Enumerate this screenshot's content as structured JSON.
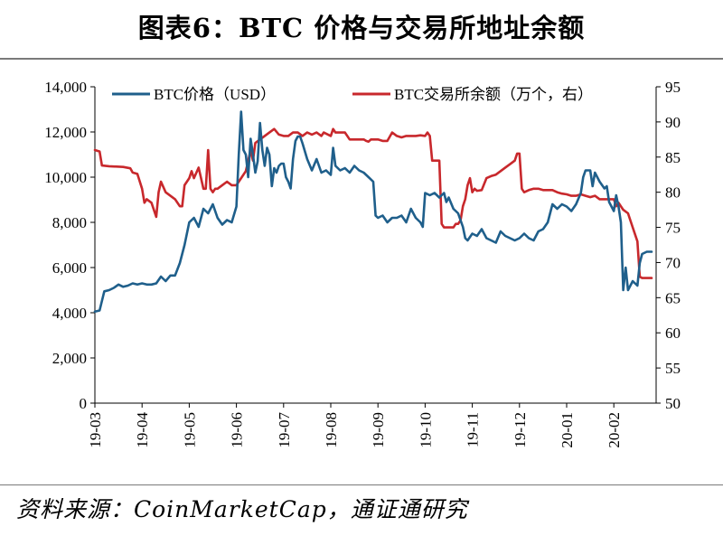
{
  "title": "图表6：BTC 价格与交易所地址余额",
  "source": "资料来源：CoinMarketCap，通证通研究",
  "chart_data": {
    "type": "line",
    "x_tick_labels": [
      "19-03",
      "19-04",
      "19-05",
      "19-06",
      "19-07",
      "19-08",
      "19-09",
      "19-10",
      "19-11",
      "19-12",
      "20-01",
      "20-02"
    ],
    "x_range": [
      0,
      11.8
    ],
    "y_left": {
      "range": [
        0,
        14000
      ],
      "ticks": [
        0,
        2000,
        4000,
        6000,
        8000,
        10000,
        12000,
        14000
      ],
      "tick_labels": [
        "0",
        "2,000",
        "4,000",
        "6,000",
        "8,000",
        "10,000",
        "12,000",
        "14,000"
      ]
    },
    "y_right": {
      "range": [
        50,
        95
      ],
      "ticks": [
        50,
        55,
        60,
        65,
        70,
        75,
        80,
        85,
        90,
        95
      ],
      "tick_labels": [
        "50",
        "55",
        "60",
        "65",
        "70",
        "75",
        "80",
        "85",
        "90",
        "95"
      ]
    },
    "grid": false,
    "legend_position": "top",
    "series": [
      {
        "name": "BTC价格（USD）",
        "axis": "left",
        "color": "#1f5f8b",
        "points": [
          [
            0.0,
            4050
          ],
          [
            0.1,
            4100
          ],
          [
            0.2,
            4950
          ],
          [
            0.3,
            5000
          ],
          [
            0.4,
            5100
          ],
          [
            0.5,
            5250
          ],
          [
            0.6,
            5150
          ],
          [
            0.7,
            5200
          ],
          [
            0.8,
            5300
          ],
          [
            0.9,
            5250
          ],
          [
            1.0,
            5300
          ],
          [
            1.1,
            5250
          ],
          [
            1.2,
            5250
          ],
          [
            1.3,
            5300
          ],
          [
            1.4,
            5600
          ],
          [
            1.5,
            5400
          ],
          [
            1.6,
            5650
          ],
          [
            1.7,
            5650
          ],
          [
            1.8,
            6200
          ],
          [
            1.9,
            7000
          ],
          [
            2.0,
            8000
          ],
          [
            2.1,
            8200
          ],
          [
            2.2,
            7800
          ],
          [
            2.3,
            8600
          ],
          [
            2.4,
            8400
          ],
          [
            2.5,
            8800
          ],
          [
            2.6,
            8200
          ],
          [
            2.7,
            7900
          ],
          [
            2.8,
            8100
          ],
          [
            2.9,
            8000
          ],
          [
            3.0,
            8700
          ],
          [
            3.05,
            11000
          ],
          [
            3.1,
            12900
          ],
          [
            3.15,
            11200
          ],
          [
            3.2,
            11000
          ],
          [
            3.25,
            10000
          ],
          [
            3.3,
            11700
          ],
          [
            3.35,
            11000
          ],
          [
            3.4,
            10200
          ],
          [
            3.45,
            10700
          ],
          [
            3.5,
            12400
          ],
          [
            3.55,
            11200
          ],
          [
            3.6,
            10500
          ],
          [
            3.65,
            11300
          ],
          [
            3.7,
            11000
          ],
          [
            3.75,
            9600
          ],
          [
            3.8,
            10400
          ],
          [
            3.85,
            10200
          ],
          [
            3.9,
            10500
          ],
          [
            3.95,
            10600
          ],
          [
            4.0,
            10600
          ],
          [
            4.05,
            10000
          ],
          [
            4.1,
            9800
          ],
          [
            4.15,
            9500
          ],
          [
            4.2,
            10800
          ],
          [
            4.25,
            11600
          ],
          [
            4.3,
            11800
          ],
          [
            4.35,
            11800
          ],
          [
            4.4,
            11500
          ],
          [
            4.5,
            10800
          ],
          [
            4.6,
            10300
          ],
          [
            4.7,
            10800
          ],
          [
            4.8,
            10200
          ],
          [
            4.9,
            10300
          ],
          [
            5.0,
            10100
          ],
          [
            5.05,
            11300
          ],
          [
            5.1,
            10500
          ],
          [
            5.2,
            10300
          ],
          [
            5.3,
            10400
          ],
          [
            5.4,
            10200
          ],
          [
            5.5,
            10500
          ],
          [
            5.6,
            10300
          ],
          [
            5.7,
            10200
          ],
          [
            5.8,
            10000
          ],
          [
            5.9,
            9800
          ],
          [
            5.95,
            8300
          ],
          [
            6.0,
            8200
          ],
          [
            6.1,
            8300
          ],
          [
            6.2,
            8000
          ],
          [
            6.3,
            8200
          ],
          [
            6.4,
            8200
          ],
          [
            6.5,
            8300
          ],
          [
            6.6,
            8000
          ],
          [
            6.7,
            8600
          ],
          [
            6.8,
            8200
          ],
          [
            6.9,
            8000
          ],
          [
            6.95,
            7800
          ],
          [
            7.0,
            9300
          ],
          [
            7.1,
            9200
          ],
          [
            7.2,
            9300
          ],
          [
            7.3,
            9100
          ],
          [
            7.4,
            9300
          ],
          [
            7.45,
            8900
          ],
          [
            7.5,
            9100
          ],
          [
            7.6,
            8600
          ],
          [
            7.7,
            8400
          ],
          [
            7.8,
            7800
          ],
          [
            7.85,
            7300
          ],
          [
            7.9,
            7200
          ],
          [
            8.0,
            7500
          ],
          [
            8.1,
            7400
          ],
          [
            8.2,
            7700
          ],
          [
            8.3,
            7300
          ],
          [
            8.4,
            7200
          ],
          [
            8.5,
            7100
          ],
          [
            8.6,
            7600
          ],
          [
            8.7,
            7400
          ],
          [
            8.8,
            7300
          ],
          [
            8.9,
            7200
          ],
          [
            9.0,
            7300
          ],
          [
            9.05,
            7400
          ],
          [
            9.1,
            7500
          ],
          [
            9.2,
            7300
          ],
          [
            9.3,
            7200
          ],
          [
            9.4,
            7600
          ],
          [
            9.5,
            7700
          ],
          [
            9.6,
            8000
          ],
          [
            9.7,
            8800
          ],
          [
            9.8,
            8600
          ],
          [
            9.9,
            8800
          ],
          [
            10.0,
            8700
          ],
          [
            10.1,
            8500
          ],
          [
            10.2,
            8800
          ],
          [
            10.3,
            9300
          ],
          [
            10.35,
            10000
          ],
          [
            10.4,
            10300
          ],
          [
            10.5,
            10300
          ],
          [
            10.55,
            9600
          ],
          [
            10.6,
            10200
          ],
          [
            10.7,
            9800
          ],
          [
            10.8,
            9500
          ],
          [
            10.85,
            9600
          ],
          [
            10.9,
            8900
          ],
          [
            11.0,
            8500
          ],
          [
            11.05,
            9200
          ],
          [
            11.1,
            8700
          ],
          [
            11.15,
            8000
          ],
          [
            11.2,
            5000
          ],
          [
            11.25,
            6000
          ],
          [
            11.3,
            5000
          ],
          [
            11.4,
            5400
          ],
          [
            11.5,
            5200
          ],
          [
            11.55,
            6200
          ],
          [
            11.6,
            6600
          ],
          [
            11.7,
            6700
          ],
          [
            11.8,
            6700
          ]
        ]
      },
      {
        "name": "BTC交易所余额（万个，右）",
        "axis": "right",
        "color": "#c8282c",
        "points": [
          [
            0.0,
            86
          ],
          [
            0.1,
            85.8
          ],
          [
            0.15,
            83.8
          ],
          [
            0.3,
            83.7
          ],
          [
            0.6,
            83.6
          ],
          [
            0.75,
            83.4
          ],
          [
            0.8,
            82.8
          ],
          [
            0.9,
            82.6
          ],
          [
            1.0,
            80.5
          ],
          [
            1.05,
            78.5
          ],
          [
            1.1,
            79
          ],
          [
            1.2,
            78.5
          ],
          [
            1.3,
            76.5
          ],
          [
            1.35,
            80
          ],
          [
            1.4,
            81.5
          ],
          [
            1.5,
            80
          ],
          [
            1.6,
            79.5
          ],
          [
            1.7,
            79
          ],
          [
            1.8,
            78
          ],
          [
            1.85,
            78
          ],
          [
            1.9,
            81
          ],
          [
            2.0,
            82
          ],
          [
            2.05,
            83
          ],
          [
            2.1,
            82
          ],
          [
            2.2,
            83.5
          ],
          [
            2.3,
            80.5
          ],
          [
            2.35,
            80.5
          ],
          [
            2.4,
            86
          ],
          [
            2.45,
            80.5
          ],
          [
            2.5,
            80
          ],
          [
            2.55,
            80.5
          ],
          [
            2.6,
            80.5
          ],
          [
            2.7,
            81
          ],
          [
            2.8,
            81.5
          ],
          [
            2.9,
            81
          ],
          [
            3.0,
            81
          ],
          [
            3.05,
            81.5
          ],
          [
            3.1,
            82
          ],
          [
            3.2,
            83
          ],
          [
            3.3,
            86
          ],
          [
            3.35,
            84.5
          ],
          [
            3.4,
            87
          ],
          [
            3.5,
            87.5
          ],
          [
            3.6,
            88
          ],
          [
            3.7,
            88.5
          ],
          [
            3.8,
            89
          ],
          [
            3.9,
            88.2
          ],
          [
            4.0,
            88
          ],
          [
            4.1,
            88
          ],
          [
            4.2,
            88.5
          ],
          [
            4.3,
            88.5
          ],
          [
            4.4,
            88
          ],
          [
            4.5,
            88.5
          ],
          [
            4.6,
            88.2
          ],
          [
            4.7,
            88.5
          ],
          [
            4.8,
            88
          ],
          [
            4.85,
            88.5
          ],
          [
            5.0,
            88
          ],
          [
            5.05,
            89
          ],
          [
            5.1,
            88.5
          ],
          [
            5.2,
            88.5
          ],
          [
            5.3,
            88.5
          ],
          [
            5.4,
            87.5
          ],
          [
            5.5,
            87.5
          ],
          [
            5.6,
            87.5
          ],
          [
            5.7,
            87.5
          ],
          [
            5.75,
            87.3
          ],
          [
            5.8,
            87.2
          ],
          [
            5.85,
            87.5
          ],
          [
            5.9,
            87.5
          ],
          [
            6.0,
            87.5
          ],
          [
            6.1,
            87.3
          ],
          [
            6.2,
            87.3
          ],
          [
            6.3,
            88.5
          ],
          [
            6.4,
            88
          ],
          [
            6.5,
            87.8
          ],
          [
            6.6,
            88
          ],
          [
            6.7,
            88
          ],
          [
            6.8,
            88
          ],
          [
            6.9,
            88.1
          ],
          [
            7.0,
            88
          ],
          [
            7.05,
            88.5
          ],
          [
            7.1,
            88
          ],
          [
            7.15,
            84.5
          ],
          [
            7.2,
            84.5
          ],
          [
            7.3,
            84.5
          ],
          [
            7.35,
            75.5
          ],
          [
            7.4,
            75
          ],
          [
            7.5,
            75
          ],
          [
            7.6,
            75
          ],
          [
            7.65,
            75.5
          ],
          [
            7.7,
            75.5
          ],
          [
            7.75,
            76
          ],
          [
            7.8,
            78
          ],
          [
            7.85,
            79
          ],
          [
            7.9,
            81
          ],
          [
            7.95,
            82
          ],
          [
            8.0,
            80
          ],
          [
            8.05,
            80.5
          ],
          [
            8.1,
            80.2
          ],
          [
            8.2,
            80.3
          ],
          [
            8.3,
            82
          ],
          [
            8.4,
            82.3
          ],
          [
            8.5,
            82.5
          ],
          [
            8.6,
            83
          ],
          [
            8.7,
            83.5
          ],
          [
            8.8,
            84
          ],
          [
            8.9,
            84.5
          ],
          [
            8.95,
            85.5
          ],
          [
            9.0,
            85.5
          ],
          [
            9.05,
            80.5
          ],
          [
            9.1,
            80
          ],
          [
            9.2,
            80.3
          ],
          [
            9.3,
            80.5
          ],
          [
            9.4,
            80.5
          ],
          [
            9.5,
            80.3
          ],
          [
            9.6,
            80.3
          ],
          [
            9.7,
            80.3
          ],
          [
            9.8,
            80
          ],
          [
            9.9,
            79.8
          ],
          [
            10.0,
            79.7
          ],
          [
            10.1,
            79.5
          ],
          [
            10.2,
            79.5
          ],
          [
            10.3,
            79.7
          ],
          [
            10.4,
            79.5
          ],
          [
            10.5,
            79.3
          ],
          [
            10.6,
            79.5
          ],
          [
            10.7,
            79
          ],
          [
            10.8,
            79
          ],
          [
            10.9,
            79
          ],
          [
            11.0,
            79
          ],
          [
            11.05,
            78
          ],
          [
            11.1,
            78.5
          ],
          [
            11.2,
            77.5
          ],
          [
            11.3,
            77
          ],
          [
            11.4,
            75
          ],
          [
            11.5,
            73
          ],
          [
            11.55,
            68
          ],
          [
            11.6,
            67.8
          ],
          [
            11.8,
            67.8
          ]
        ]
      }
    ]
  }
}
